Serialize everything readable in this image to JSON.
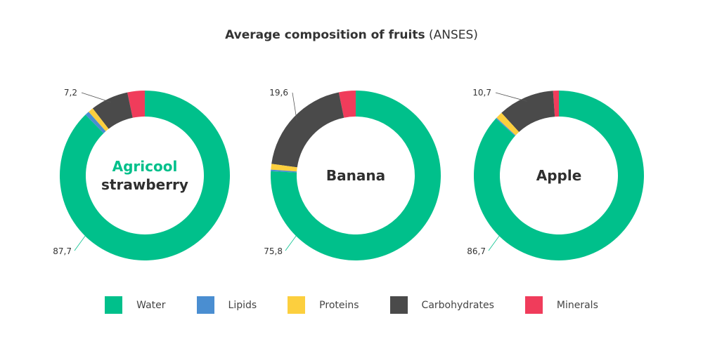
{
  "title_bold": "Average composition of fruits",
  "title_source": "(ANSES)",
  "legend": [
    {
      "name": "Water",
      "color": "#00c08b"
    },
    {
      "name": "Lipids",
      "color": "#4a8ed1"
    },
    {
      "name": "Proteins",
      "color": "#fccf3e"
    },
    {
      "name": "Carbohydrates",
      "color": "#4a4a4a"
    },
    {
      "name": "Minerals",
      "color": "#f03c5b"
    }
  ],
  "chart_data": [
    {
      "type": "pie",
      "label_lines": [
        "Agricool",
        "strawberry"
      ],
      "categories": [
        "Water",
        "Lipids",
        "Proteins",
        "Carbohydrates",
        "Minerals"
      ],
      "values": [
        87.7,
        0.8,
        1.0,
        7.2,
        3.3
      ],
      "data_labels": {
        "carbohydrates": "7,2",
        "water": "87,7"
      }
    },
    {
      "type": "pie",
      "label_lines": [
        "Banana"
      ],
      "categories": [
        "Water",
        "Lipids",
        "Proteins",
        "Carbohydrates",
        "Minerals"
      ],
      "values": [
        75.8,
        0.3,
        1.1,
        19.6,
        3.2
      ],
      "data_labels": {
        "carbohydrates": "19,6",
        "water": "75,8"
      }
    },
    {
      "type": "pie",
      "label_lines": [
        "Apple"
      ],
      "categories": [
        "Water",
        "Lipids",
        "Proteins",
        "Carbohydrates",
        "Minerals"
      ],
      "values": [
        86.7,
        0.2,
        1.3,
        10.7,
        1.1
      ],
      "data_labels": {
        "carbohydrates": "10,7",
        "water": "86,7"
      }
    }
  ]
}
